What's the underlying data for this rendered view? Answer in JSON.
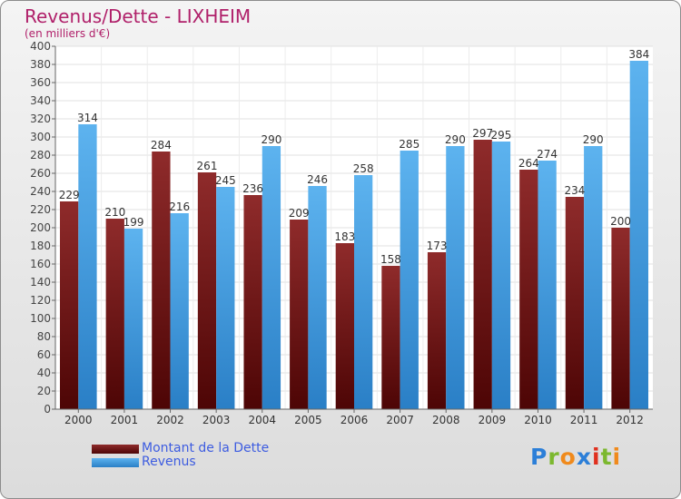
{
  "header": {
    "title": "Revenus/Dette - LIXHEIM",
    "subtitle": "(en milliers d'€)"
  },
  "logo": {
    "letters": [
      "P",
      "r",
      "o",
      "x",
      "i",
      "t",
      "i"
    ]
  },
  "chart_data": {
    "type": "bar",
    "title": "Revenus/Dette - LIXHEIM",
    "subtitle": "(en milliers d'€)",
    "categories": [
      "2000",
      "2001",
      "2002",
      "2003",
      "2004",
      "2005",
      "2006",
      "2007",
      "2008",
      "2009",
      "2010",
      "2011",
      "2012"
    ],
    "series": [
      {
        "name": "Montant de la Dette",
        "color": "#6e1010",
        "values": [
          229,
          210,
          284,
          261,
          236,
          209,
          183,
          158,
          173,
          297,
          264,
          234,
          200
        ]
      },
      {
        "name": "Revenus",
        "color": "#4aa3e6",
        "values": [
          314,
          199,
          216,
          245,
          290,
          246,
          258,
          285,
          290,
          295,
          274,
          290,
          384
        ]
      }
    ],
    "ylim": [
      0,
      400
    ],
    "yticks": [
      0,
      20,
      40,
      60,
      80,
      100,
      120,
      140,
      160,
      180,
      200,
      220,
      240,
      260,
      280,
      300,
      320,
      340,
      360,
      380,
      400
    ],
    "grid": true,
    "legend": "bottom-left"
  }
}
